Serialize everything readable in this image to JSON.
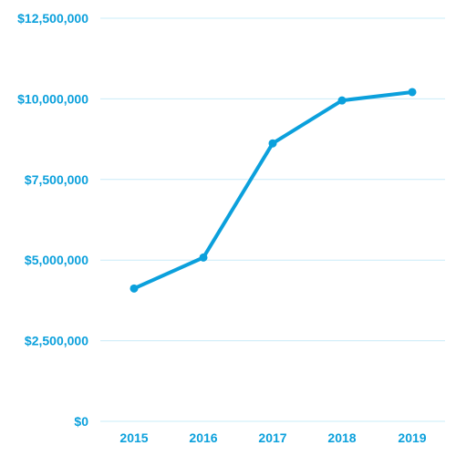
{
  "chart_data": {
    "type": "line",
    "categories": [
      "2015",
      "2016",
      "2017",
      "2018",
      "2019"
    ],
    "series": [
      {
        "values": [
          4120000,
          5080000,
          8620000,
          9950000,
          10210000
        ]
      }
    ],
    "y_ticks": [
      "$0",
      "$2,500,000",
      "$5,000,000",
      "$7,500,000",
      "$10,000,000",
      "$12,500,000"
    ],
    "y_tick_values": [
      0,
      2500000,
      5000000,
      7500000,
      10000000,
      12500000
    ],
    "ylim": [
      0,
      12500000
    ],
    "title": "",
    "xlabel": "",
    "ylabel": "",
    "grid": true,
    "colors": {
      "line": "#0ba0dc",
      "text": "#0ba0dc",
      "grid": "#c9ecf8"
    }
  }
}
